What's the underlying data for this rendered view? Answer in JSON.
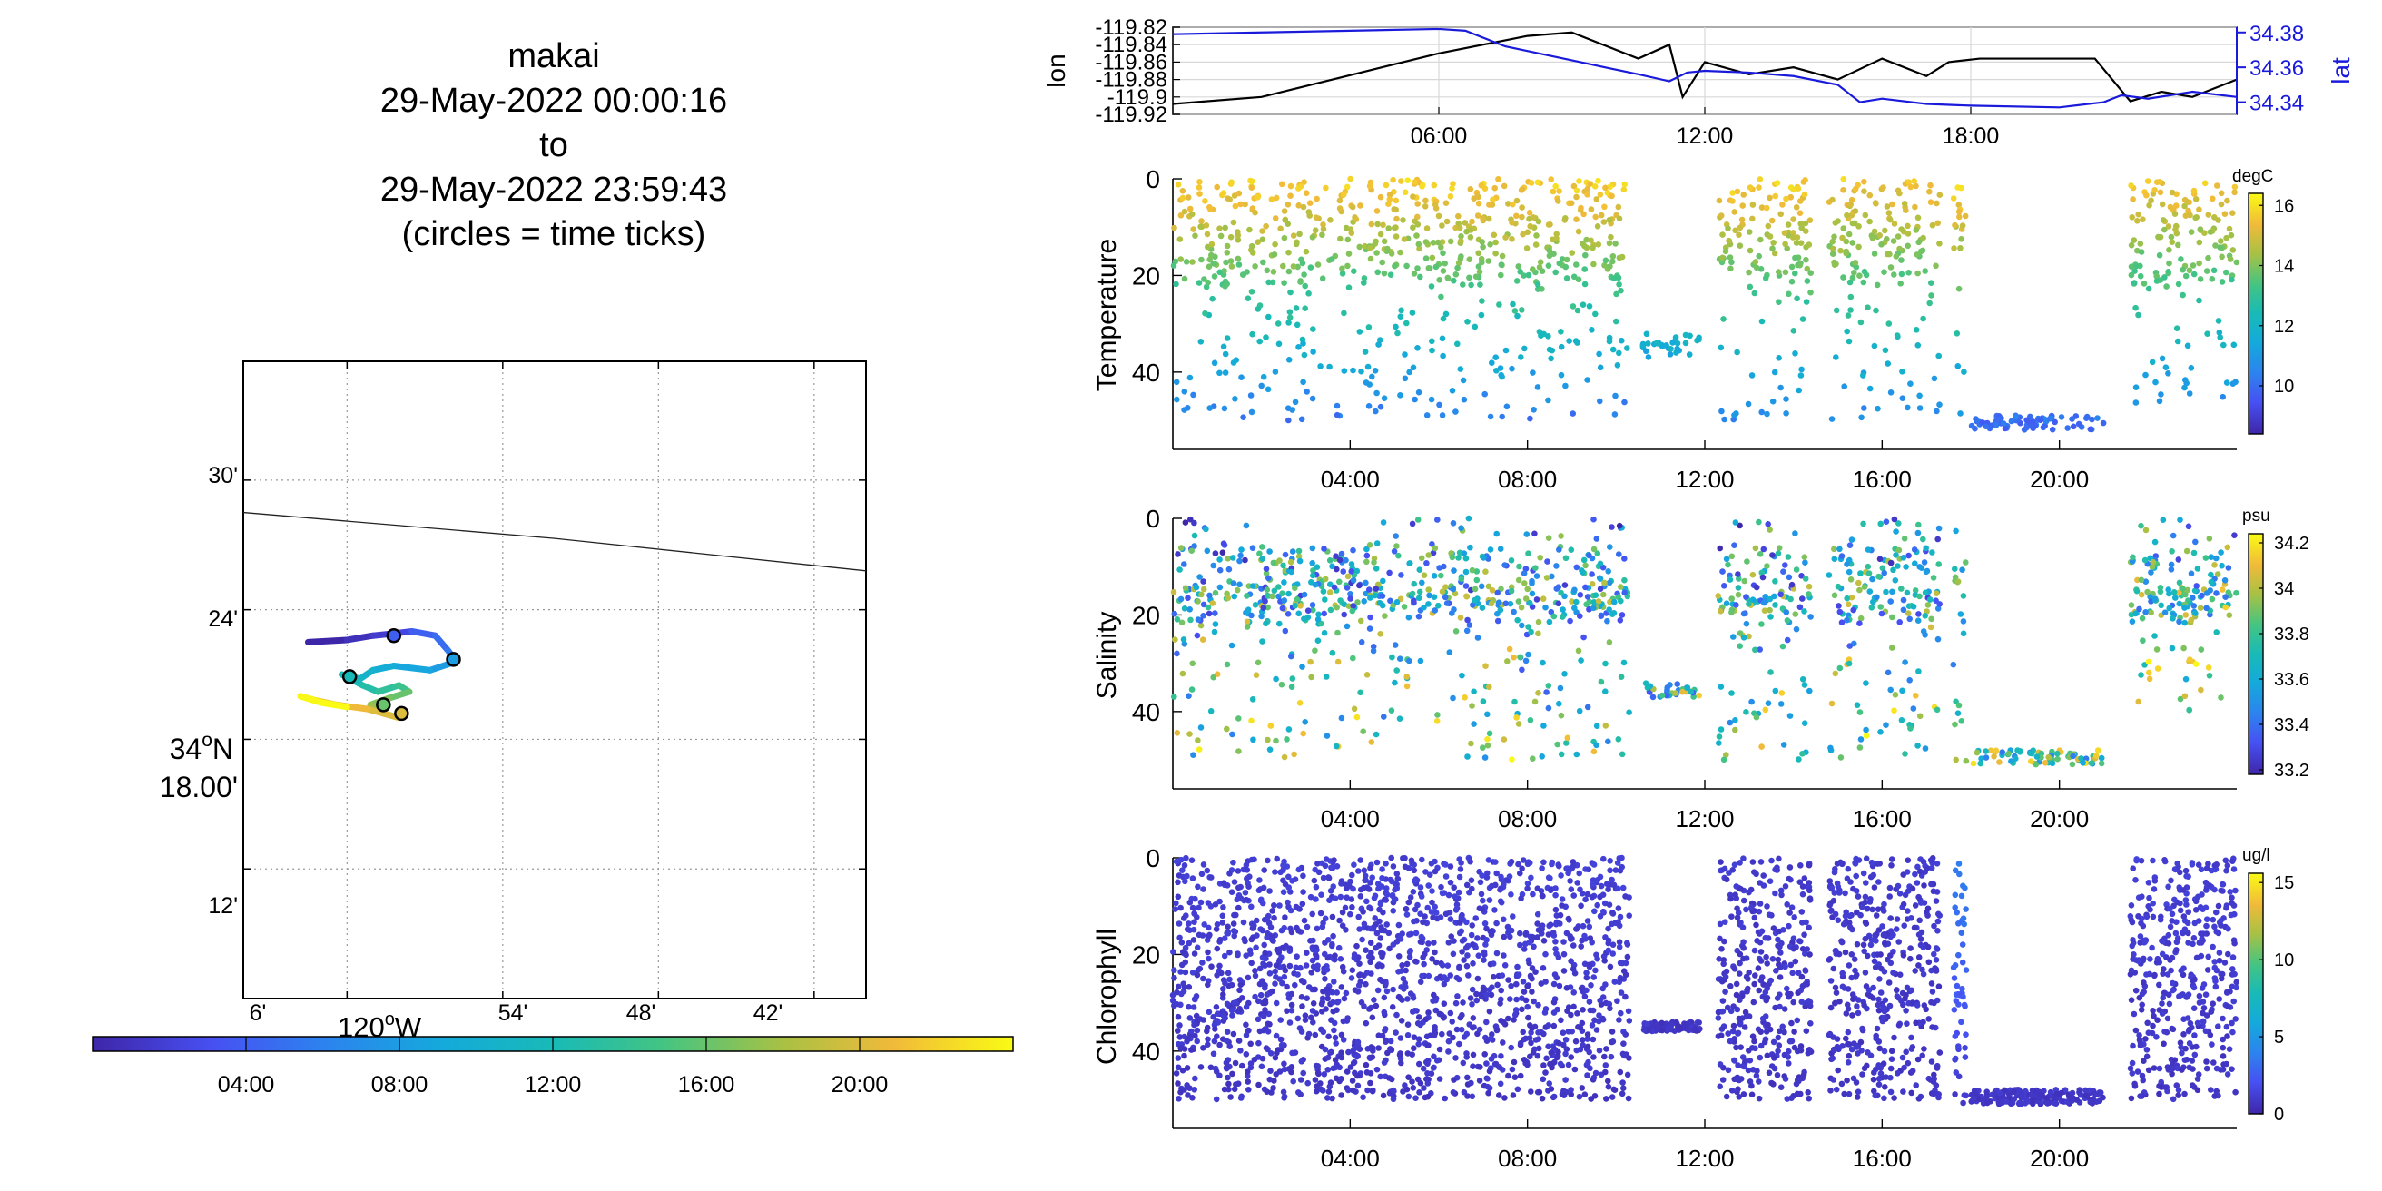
{
  "title": {
    "line1": "makai",
    "line2": "29-May-2022 00:00:16",
    "line3": "to",
    "line4": "29-May-2022 23:59:43",
    "line5": "(circles = time ticks)"
  },
  "map": {
    "lat_ticks": [
      "30'",
      "24'",
      "18.00'",
      "12'"
    ],
    "lat_deg_label": "34",
    "lat_hemi": "N",
    "lon_ticks": [
      "6'",
      "54'",
      "48'",
      "42'"
    ],
    "lon_deg_label": "120",
    "lon_hemi": "W",
    "grid": true,
    "coastline": [
      [
        0,
        28.7
      ],
      [
        14,
        27.3
      ],
      [
        26,
        25.8
      ],
      [
        34,
        23.5
      ],
      [
        40,
        21.1
      ],
      [
        48,
        19.4
      ]
    ],
    "track": [
      {
        "t": 0.0,
        "pts": [
          [
            4.5,
            22.5
          ],
          [
            6.0,
            22.6
          ],
          [
            7.0,
            22.8
          ],
          [
            7.8,
            22.9
          ],
          [
            8.5,
            23.0
          ]
        ]
      },
      {
        "t": 4.0,
        "pts": [
          [
            8.5,
            23.0
          ],
          [
            9.4,
            22.8
          ],
          [
            9.9,
            22.1
          ],
          [
            10.2,
            21.6
          ]
        ]
      },
      {
        "t": 8.0,
        "pts": [
          [
            10.2,
            21.6
          ],
          [
            9.2,
            21.2
          ],
          [
            7.8,
            21.4
          ],
          [
            7.0,
            21.2
          ],
          [
            6.5,
            20.8
          ],
          [
            5.8,
            21.0
          ]
        ]
      },
      {
        "t": 12.0,
        "pts": [
          [
            5.8,
            21.0
          ],
          [
            6.6,
            20.5
          ],
          [
            7.2,
            20.2
          ],
          [
            8.0,
            20.5
          ],
          [
            8.4,
            20.2
          ]
        ]
      },
      {
        "t": 16.0,
        "pts": [
          [
            8.4,
            20.2
          ],
          [
            7.6,
            19.9
          ],
          [
            6.9,
            19.6
          ],
          [
            7.4,
            19.2
          ],
          [
            8.0,
            19.0
          ]
        ]
      },
      {
        "t": 20.0,
        "pts": [
          [
            8.0,
            19.0
          ],
          [
            6.8,
            19.4
          ],
          [
            5.6,
            19.6
          ],
          [
            4.8,
            19.8
          ]
        ]
      },
      {
        "t": 23.0,
        "pts": [
          [
            4.8,
            19.8
          ],
          [
            4.2,
            20.0
          ],
          [
            5.0,
            19.7
          ],
          [
            6.0,
            19.5
          ]
        ]
      }
    ],
    "tick_circles": [
      {
        "t": 4.0,
        "lon": 7.8,
        "lat": 22.8
      },
      {
        "t": 8.0,
        "lon": 10.1,
        "lat": 21.7
      },
      {
        "t": 12.0,
        "lon": 6.1,
        "lat": 20.9
      },
      {
        "t": 16.0,
        "lon": 7.4,
        "lat": 19.6
      },
      {
        "t": 20.0,
        "lon": 8.1,
        "lat": 19.2
      }
    ]
  },
  "time_colorbar": {
    "ticks": [
      "04:00",
      "08:00",
      "12:00",
      "16:00",
      "20:00"
    ],
    "tick_hours": [
      4,
      8,
      12,
      16,
      20
    ],
    "range_hours": [
      0,
      24
    ]
  },
  "chart_data": [
    {
      "type": "line",
      "ylabel_left": "lon",
      "ylabel_right": "lat",
      "left_ticks": [
        "-119.82",
        "-119.84",
        "-119.86",
        "-119.88",
        "-119.9",
        "-119.92"
      ],
      "right_ticks": [
        "34.38",
        "34.36",
        "34.34"
      ],
      "x_ticks": [
        "06:00",
        "12:00",
        "18:00"
      ],
      "x_tick_hours": [
        6,
        12,
        18
      ],
      "ylim_left": [
        -119.92,
        -119.82
      ],
      "ylim_right": [
        34.333,
        34.383
      ],
      "grid": true,
      "series": [
        {
          "axis": "left",
          "color": "#000000",
          "x": [
            0,
            2,
            4,
            6,
            8,
            9,
            10.5,
            11.2,
            11.5,
            12,
            13,
            14,
            15,
            16,
            17,
            17.5,
            18.2,
            19,
            20,
            20.8,
            21.6,
            22.3,
            23,
            24
          ],
          "y": [
            -119.908,
            -119.9,
            -119.875,
            -119.85,
            -119.83,
            -119.826,
            -119.856,
            -119.84,
            -119.9,
            -119.86,
            -119.874,
            -119.866,
            -119.88,
            -119.856,
            -119.876,
            -119.86,
            -119.856,
            -119.856,
            -119.856,
            -119.856,
            -119.905,
            -119.894,
            -119.9,
            -119.88
          ]
        },
        {
          "axis": "right",
          "color": "#1a1adb",
          "x": [
            0,
            2,
            4,
            6,
            6.6,
            7.5,
            9,
            10.5,
            11.2,
            11.6,
            12,
            13,
            14,
            15,
            15.5,
            16,
            17,
            18,
            20,
            21,
            21.4,
            22,
            23,
            24
          ],
          "y": [
            34.379,
            34.38,
            34.381,
            34.382,
            34.381,
            34.372,
            34.364,
            34.356,
            34.352,
            34.357,
            34.358,
            34.357,
            34.355,
            34.35,
            34.34,
            34.342,
            34.339,
            34.338,
            34.337,
            34.34,
            34.344,
            34.342,
            34.346,
            34.343
          ]
        }
      ]
    },
    {
      "type": "scatter",
      "ylabel": "Temperature",
      "y_ticks": [
        "0",
        "20",
        "40"
      ],
      "y_tick_values": [
        0,
        20,
        40
      ],
      "x_ticks": [
        "04:00",
        "08:00",
        "12:00",
        "16:00",
        "20:00"
      ],
      "x_tick_hours": [
        4,
        8,
        12,
        16,
        20
      ],
      "ylim": [
        0,
        56
      ],
      "colorbar": {
        "unit": "degC",
        "ticks": [
          "16",
          "14",
          "12",
          "10"
        ],
        "tick_values": [
          16,
          14,
          12,
          10
        ],
        "range": [
          8.4,
          16.4
        ]
      },
      "bands": [
        {
          "x": [
            0,
            10.3
          ],
          "y_min": 0,
          "y_max": 50,
          "c_top": 15.8,
          "c_bot": 10.2
        },
        {
          "x": [
            10.6,
            11.9
          ],
          "y_min": 32,
          "y_max": 37,
          "c_top": 12,
          "c_bot": 11.5
        },
        {
          "x": [
            12.3,
            14.4
          ],
          "y_min": 0,
          "y_max": 50,
          "c_top": 15.8,
          "c_bot": 10.5
        },
        {
          "x": [
            14.8,
            17.3
          ],
          "y_min": 0,
          "y_max": 50,
          "c_top": 15.6,
          "c_bot": 10.5
        },
        {
          "x": [
            17.6,
            17.9
          ],
          "y_min": 0,
          "y_max": 55,
          "c_top": 15.9,
          "c_bot": 10.0
        },
        {
          "x": [
            18.0,
            21.0
          ],
          "y_min": 49,
          "y_max": 52,
          "c_top": 10.2,
          "c_bot": 9.8
        },
        {
          "x": [
            21.6,
            24
          ],
          "y_min": 0,
          "y_max": 48,
          "c_top": 15.6,
          "c_bot": 10.5
        }
      ]
    },
    {
      "type": "scatter",
      "ylabel": "Salinity",
      "y_ticks": [
        "0",
        "20",
        "40"
      ],
      "y_tick_values": [
        0,
        20,
        40
      ],
      "x_ticks": [
        "04:00",
        "08:00",
        "12:00",
        "16:00",
        "20:00"
      ],
      "x_tick_hours": [
        4,
        8,
        12,
        16,
        20
      ],
      "ylim": [
        0,
        56
      ],
      "colorbar": {
        "unit": "psu",
        "ticks": [
          "34.2",
          "34",
          "33.8",
          "33.6",
          "33.4",
          "33.2"
        ],
        "tick_values": [
          34.2,
          34.0,
          33.8,
          33.6,
          33.4,
          33.2
        ],
        "range": [
          33.18,
          34.24
        ]
      },
      "bands": [
        {
          "x": [
            0,
            10.3
          ],
          "y_min": 0,
          "y_max": 50,
          "c_top": 33.55,
          "c_bot": 33.85
        },
        {
          "x": [
            10.6,
            11.9
          ],
          "y_min": 34,
          "y_max": 37,
          "c_top": 33.7,
          "c_bot": 33.75
        },
        {
          "x": [
            12.3,
            14.4
          ],
          "y_min": 0,
          "y_max": 50,
          "c_top": 33.55,
          "c_bot": 33.85
        },
        {
          "x": [
            14.8,
            17.3
          ],
          "y_min": 0,
          "y_max": 50,
          "c_top": 33.55,
          "c_bot": 33.9
        },
        {
          "x": [
            17.6,
            17.9
          ],
          "y_min": 0,
          "y_max": 55,
          "c_top": 33.55,
          "c_bot": 33.85
        },
        {
          "x": [
            18.0,
            21.0
          ],
          "y_min": 48,
          "y_max": 51,
          "c_top": 33.8,
          "c_bot": 33.8
        },
        {
          "x": [
            21.6,
            24
          ],
          "y_min": 0,
          "y_max": 40,
          "c_top": 33.6,
          "c_bot": 33.95
        }
      ]
    },
    {
      "type": "scatter",
      "ylabel": "Chlorophyll",
      "y_ticks": [
        "0",
        "20",
        "40"
      ],
      "y_tick_values": [
        0,
        20,
        40
      ],
      "x_ticks": [
        "04:00",
        "08:00",
        "12:00",
        "16:00",
        "20:00"
      ],
      "x_tick_hours": [
        4,
        8,
        12,
        16,
        20
      ],
      "ylim": [
        0,
        56
      ],
      "colorbar": {
        "unit": "ug/l",
        "ticks": [
          "15",
          "10",
          "5",
          "0"
        ],
        "tick_values": [
          15,
          10,
          5,
          0
        ],
        "range": [
          0,
          15.6
        ]
      },
      "bands": [
        {
          "x": [
            0,
            10.3
          ],
          "y_min": 0,
          "y_max": 50,
          "c_top": 1.2,
          "c_bot": 0.8
        },
        {
          "x": [
            10.6,
            11.9
          ],
          "y_min": 34,
          "y_max": 36,
          "c_top": 0.8,
          "c_bot": 0.8
        },
        {
          "x": [
            12.3,
            14.4
          ],
          "y_min": 0,
          "y_max": 50,
          "c_top": 1.0,
          "c_bot": 0.8
        },
        {
          "x": [
            14.8,
            17.3
          ],
          "y_min": 0,
          "y_max": 50,
          "c_top": 1.0,
          "c_bot": 0.8
        },
        {
          "x": [
            17.6,
            17.9
          ],
          "y_min": 0,
          "y_max": 55,
          "c_top": 4.0,
          "c_bot": 0.8
        },
        {
          "x": [
            18.0,
            21.0
          ],
          "y_min": 48,
          "y_max": 51,
          "c_top": 0.8,
          "c_bot": 0.8
        },
        {
          "x": [
            21.6,
            24
          ],
          "y_min": 0,
          "y_max": 50,
          "c_top": 1.2,
          "c_bot": 0.8
        }
      ]
    }
  ]
}
